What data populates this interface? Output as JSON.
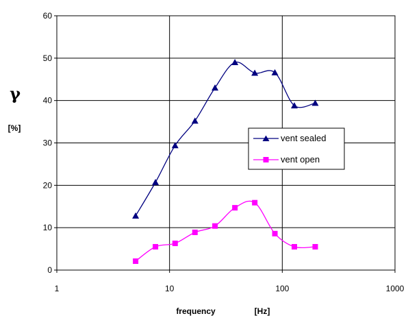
{
  "chart_data": {
    "type": "line",
    "title": "",
    "xlabel": "frequency",
    "xunit": "[Hz]",
    "ylabel_symbol": "γ",
    "ylabel_unit": "[%]",
    "xscale": "log",
    "xlim": [
      1,
      1000
    ],
    "ylim": [
      0,
      60
    ],
    "xticks": [
      1,
      10,
      100,
      1000
    ],
    "xtick_labels": [
      "1",
      "10",
      "100",
      "1000"
    ],
    "yticks": [
      0,
      10,
      20,
      30,
      40,
      50,
      60
    ],
    "ytick_labels": [
      "0",
      "10",
      "20",
      "30",
      "40",
      "50",
      "60"
    ],
    "grid": true,
    "legend_position": "right",
    "series": [
      {
        "name": "vent sealed",
        "color": "#000080",
        "marker": "triangle",
        "x": [
          5,
          7.5,
          11.2,
          16.8,
          25.3,
          38,
          57,
          86,
          128,
          196
        ],
        "y": [
          12.8,
          20.7,
          29.4,
          35.2,
          43.0,
          49.0,
          46.5,
          46.6,
          38.8,
          39.4
        ]
      },
      {
        "name": "vent open",
        "color": "#ff00ff",
        "marker": "square",
        "x": [
          5,
          7.5,
          11.2,
          16.8,
          25.3,
          38,
          57,
          86,
          128,
          196
        ],
        "y": [
          2.1,
          5.5,
          6.3,
          8.9,
          10.4,
          14.7,
          15.9,
          8.6,
          5.5,
          5.5
        ]
      }
    ]
  }
}
